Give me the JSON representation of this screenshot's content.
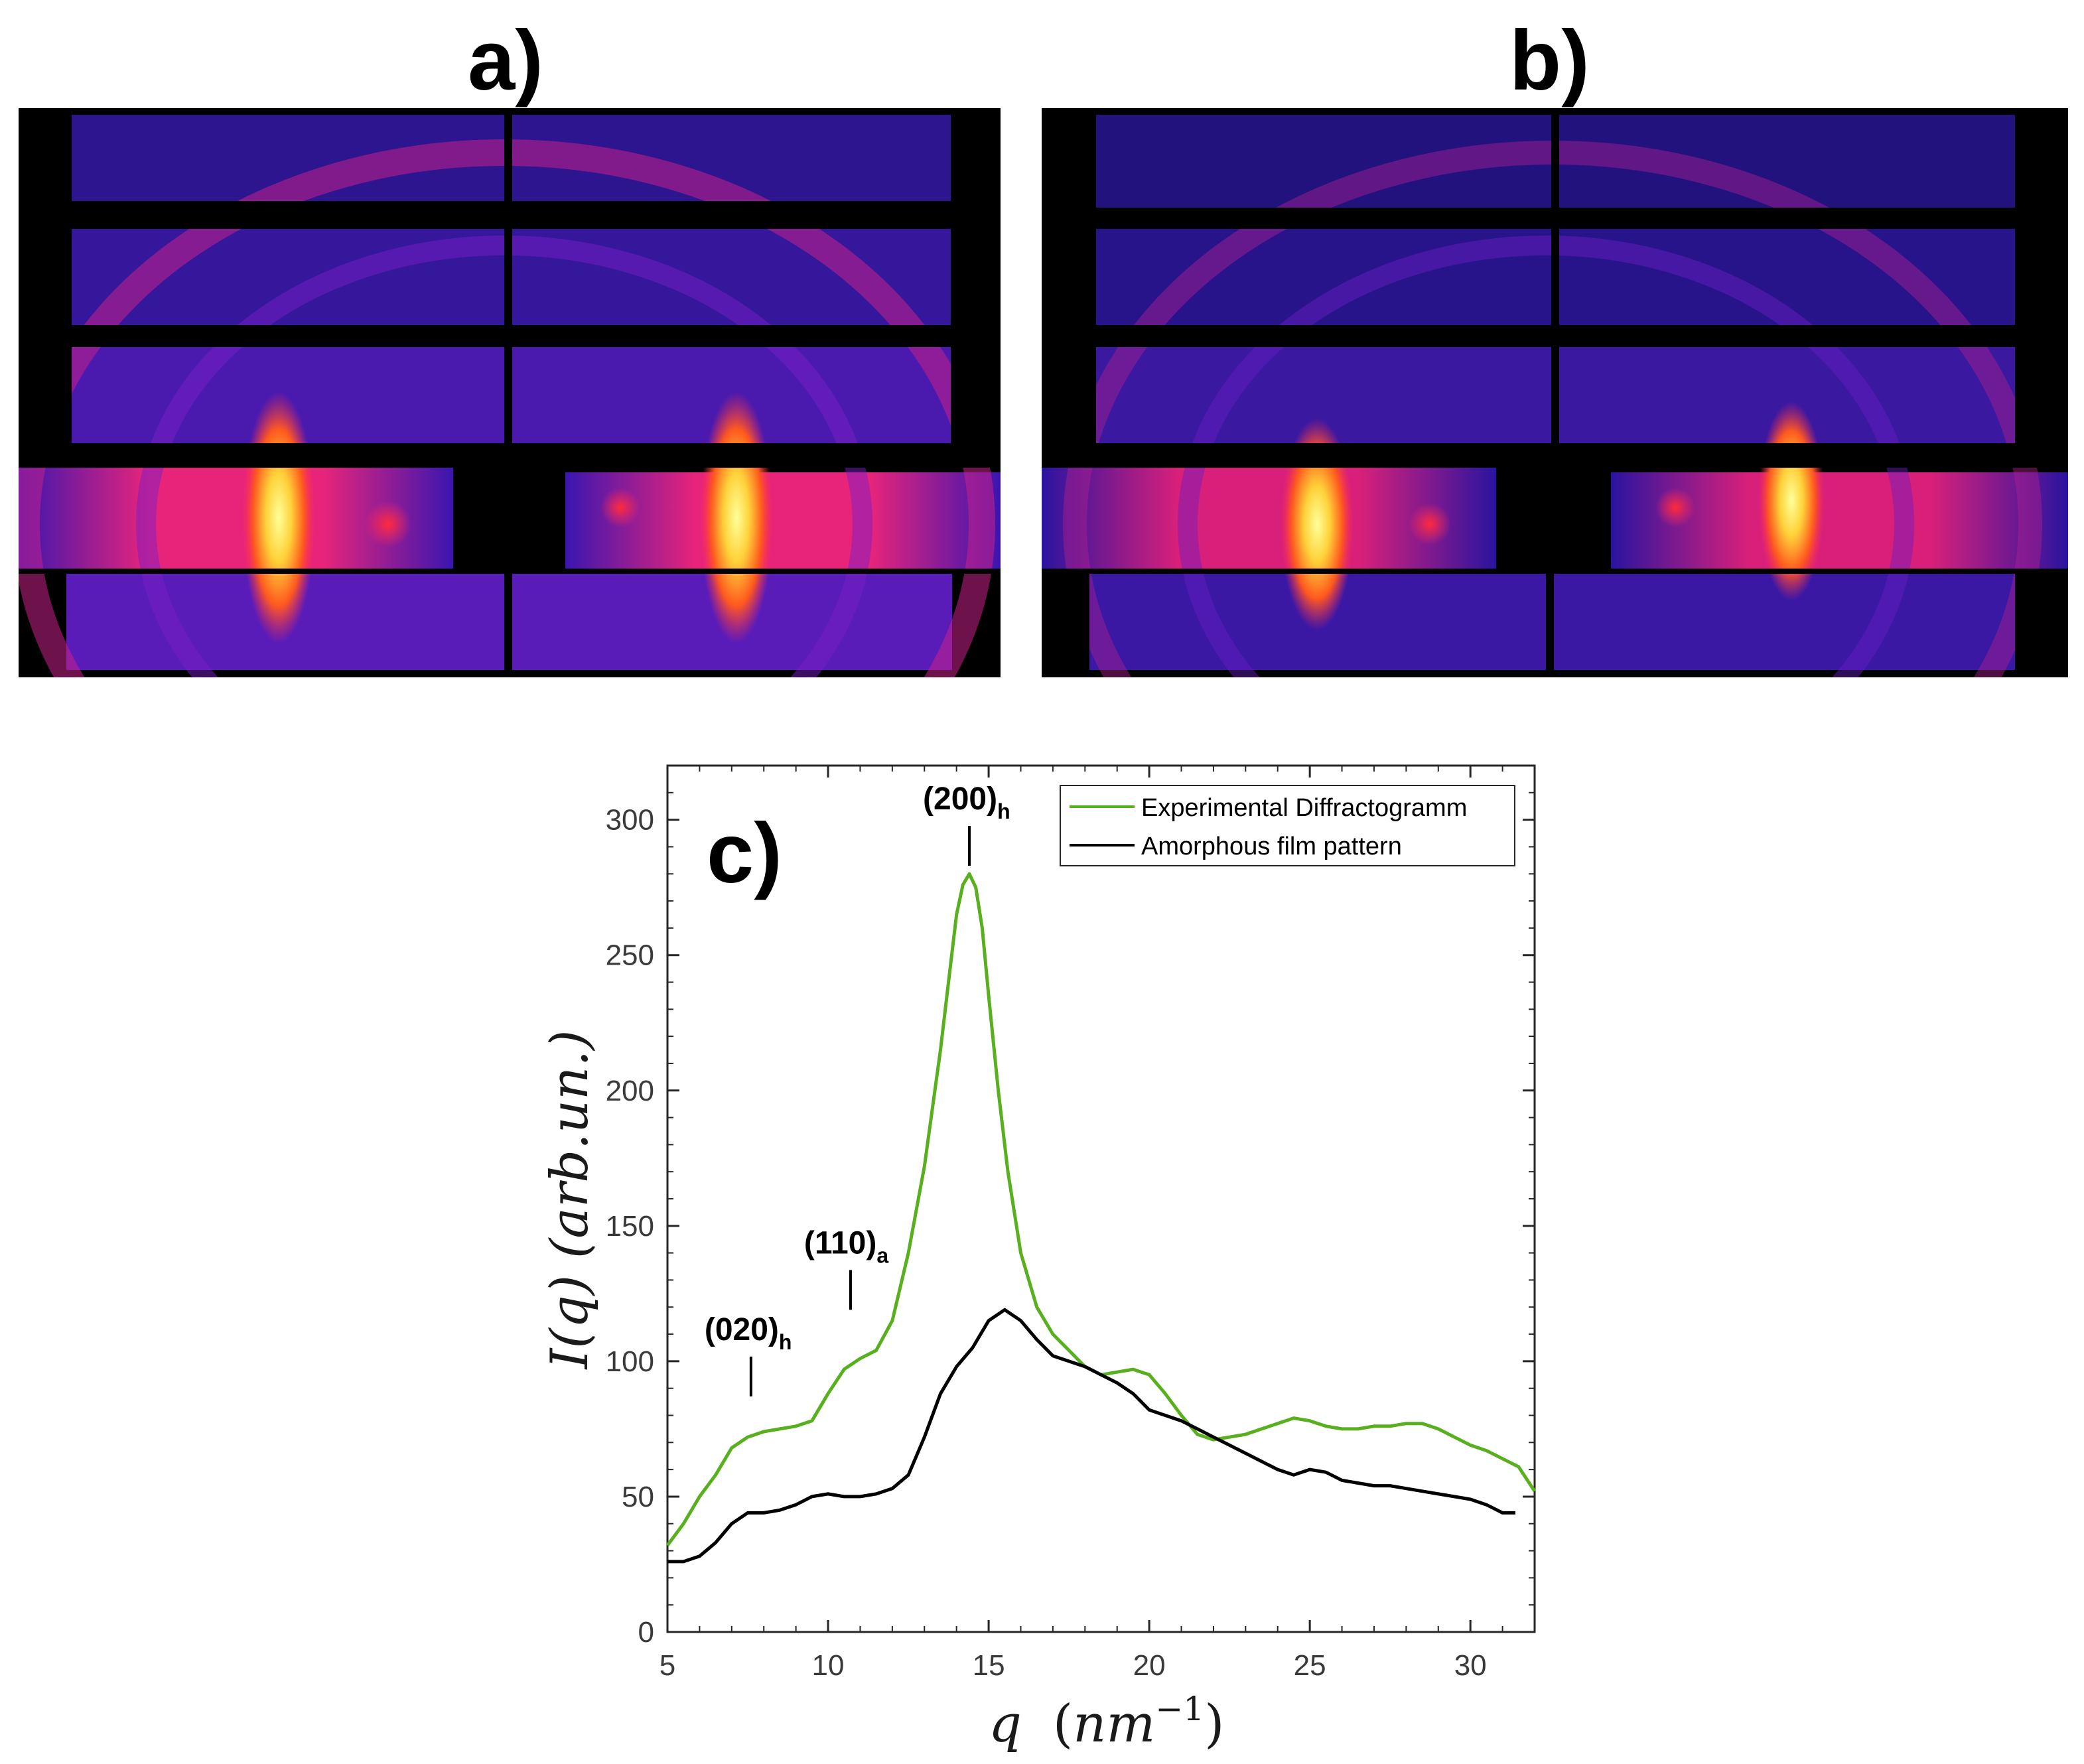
{
  "panels": {
    "a": {
      "label": "a)"
    },
    "b": {
      "label": "b)"
    },
    "c": {
      "label": "c)"
    }
  },
  "colors": {
    "experimental": "#58B01E",
    "amorphous": "#000000",
    "detector_bg": "#000000"
  },
  "chart_data": {
    "type": "line",
    "xlabel": "q (nm^-1)",
    "xlabel_parts": {
      "var": "q",
      "open": "(",
      "unit": "nm",
      "exp": "−1",
      "close": ")"
    },
    "ylabel": "I(q) (arb.un.)",
    "xlim": [
      5,
      32
    ],
    "ylim": [
      0,
      320
    ],
    "xticks": [
      5,
      10,
      15,
      20,
      25,
      30
    ],
    "yticks": [
      0,
      50,
      100,
      150,
      200,
      250,
      300
    ],
    "legend_position": "top-right",
    "series": [
      {
        "name": "Experimental Diffractogramm",
        "x": [
          5,
          5.5,
          6,
          6.5,
          7,
          7.5,
          8,
          8.5,
          9,
          9.5,
          10,
          10.5,
          11,
          11.5,
          12,
          12.5,
          13,
          13.5,
          13.8,
          14.0,
          14.2,
          14.4,
          14.6,
          14.8,
          15.0,
          15.3,
          15.6,
          16.0,
          16.5,
          17,
          17.5,
          18,
          18.5,
          19,
          19.5,
          20,
          20.5,
          21,
          21.5,
          22,
          22.5,
          23,
          23.5,
          24,
          24.5,
          25,
          25.5,
          26,
          26.5,
          27,
          27.5,
          28,
          28.5,
          29,
          29.5,
          30,
          30.5,
          31,
          31.5,
          32
        ],
        "values": [
          32,
          40,
          50,
          58,
          68,
          72,
          74,
          75,
          76,
          78,
          88,
          97,
          101,
          104,
          115,
          140,
          172,
          215,
          245,
          265,
          276,
          280,
          275,
          260,
          235,
          200,
          170,
          140,
          120,
          110,
          104,
          98,
          95,
          96,
          97,
          95,
          88,
          80,
          73,
          71,
          72,
          73,
          75,
          77,
          79,
          78,
          76,
          75,
          75,
          76,
          76,
          77,
          77,
          75,
          72,
          69,
          67,
          64,
          61,
          52
        ]
      },
      {
        "name": "Amorphous film pattern",
        "x": [
          5,
          5.5,
          6,
          6.5,
          7,
          7.5,
          8,
          8.5,
          9,
          9.5,
          10,
          10.5,
          11,
          11.5,
          12,
          12.5,
          13,
          13.5,
          14,
          14.5,
          15,
          15.5,
          16,
          16.5,
          17,
          17.5,
          18,
          18.5,
          19,
          19.5,
          20,
          20.5,
          21,
          21.5,
          22,
          22.5,
          23,
          23.5,
          24,
          24.5,
          25,
          25.5,
          26,
          26.5,
          27,
          27.5,
          28,
          28.5,
          29,
          29.5,
          30,
          30.5,
          31,
          31.4
        ],
        "values": [
          26,
          26,
          28,
          33,
          40,
          44,
          44,
          45,
          47,
          50,
          51,
          50,
          50,
          51,
          53,
          58,
          72,
          88,
          98,
          105,
          115,
          119,
          115,
          108,
          102,
          100,
          98,
          95,
          92,
          88,
          82,
          80,
          78,
          75,
          72,
          69,
          66,
          63,
          60,
          58,
          60,
          59,
          56,
          55,
          54,
          54,
          53,
          52,
          51,
          50,
          49,
          47,
          44,
          44
        ]
      }
    ],
    "annotations": [
      {
        "text": "(200)",
        "sub": "h",
        "x": 14.4,
        "y": 283
      },
      {
        "text": "(110)",
        "sub": "a",
        "x": 10.7,
        "y": 119
      },
      {
        "text": "(020)",
        "sub": "h",
        "x": 7.6,
        "y": 87
      }
    ]
  }
}
